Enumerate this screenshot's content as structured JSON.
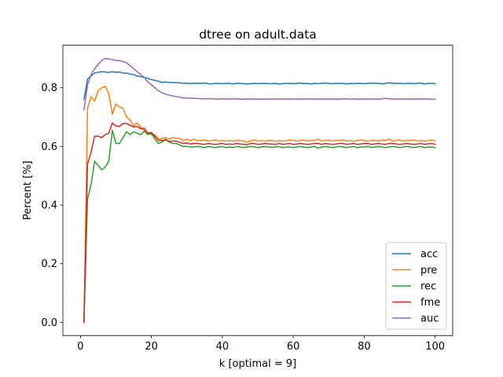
{
  "chart_data": {
    "type": "line",
    "title": "dtree on adult.data",
    "xlabel": "k [optimal = 9]",
    "ylabel": "Percent [%]",
    "xlim": [
      -4.95,
      104.95
    ],
    "ylim": [
      -0.045,
      0.945
    ],
    "xticks": [
      0,
      20,
      40,
      60,
      80,
      100
    ],
    "yticks": [
      0.0,
      0.2,
      0.4,
      0.6,
      0.8
    ],
    "ytick_labels": [
      "0.0",
      "0.2",
      "0.4",
      "0.6",
      "0.8"
    ],
    "grid": false,
    "legend_position": "lower-right",
    "x": [
      1,
      2,
      3,
      4,
      5,
      6,
      7,
      8,
      9,
      10,
      11,
      12,
      13,
      14,
      15,
      16,
      17,
      18,
      19,
      20,
      21,
      22,
      23,
      24,
      25,
      26,
      27,
      28,
      29,
      30,
      31,
      32,
      33,
      34,
      35,
      36,
      37,
      38,
      39,
      40,
      41,
      42,
      43,
      44,
      45,
      46,
      47,
      48,
      49,
      50,
      51,
      52,
      53,
      54,
      55,
      56,
      57,
      58,
      59,
      60,
      61,
      62,
      63,
      64,
      65,
      66,
      67,
      68,
      69,
      70,
      71,
      72,
      73,
      74,
      75,
      76,
      77,
      78,
      79,
      80,
      81,
      82,
      83,
      84,
      85,
      86,
      87,
      88,
      89,
      90,
      91,
      92,
      93,
      94,
      95,
      96,
      97,
      98,
      99,
      100
    ],
    "series": [
      {
        "name": "acc",
        "color": "#1f77b4",
        "values": [
          0.76,
          0.83,
          0.84,
          0.85,
          0.853,
          0.855,
          0.854,
          0.852,
          0.855,
          0.853,
          0.854,
          0.85,
          0.85,
          0.847,
          0.845,
          0.84,
          0.838,
          0.835,
          0.832,
          0.828,
          0.825,
          0.822,
          0.818,
          0.82,
          0.818,
          0.818,
          0.817,
          0.817,
          0.815,
          0.816,
          0.814,
          0.816,
          0.815,
          0.815,
          0.816,
          0.814,
          0.813,
          0.815,
          0.815,
          0.814,
          0.815,
          0.815,
          0.813,
          0.815,
          0.815,
          0.814,
          0.813,
          0.814,
          0.815,
          0.814,
          0.815,
          0.815,
          0.814,
          0.814,
          0.815,
          0.813,
          0.814,
          0.815,
          0.815,
          0.814,
          0.815,
          0.816,
          0.814,
          0.815,
          0.813,
          0.815,
          0.814,
          0.815,
          0.816,
          0.815,
          0.814,
          0.815,
          0.815,
          0.815,
          0.813,
          0.815,
          0.814,
          0.815,
          0.815,
          0.814,
          0.815,
          0.816,
          0.815,
          0.815,
          0.813,
          0.815,
          0.817,
          0.815,
          0.815,
          0.815,
          0.814,
          0.815,
          0.815,
          0.814,
          0.815,
          0.816,
          0.813,
          0.815,
          0.815,
          0.814
        ]
      },
      {
        "name": "pre",
        "color": "#ff7f0e",
        "values": [
          0.0,
          0.73,
          0.77,
          0.755,
          0.79,
          0.8,
          0.805,
          0.78,
          0.71,
          0.745,
          0.735,
          0.73,
          0.7,
          0.69,
          0.67,
          0.68,
          0.665,
          0.655,
          0.645,
          0.64,
          0.64,
          0.625,
          0.628,
          0.63,
          0.625,
          0.63,
          0.628,
          0.627,
          0.62,
          0.625,
          0.62,
          0.625,
          0.62,
          0.62,
          0.622,
          0.618,
          0.62,
          0.622,
          0.618,
          0.62,
          0.618,
          0.62,
          0.618,
          0.62,
          0.62,
          0.618,
          0.615,
          0.62,
          0.622,
          0.618,
          0.62,
          0.618,
          0.62,
          0.62,
          0.617,
          0.62,
          0.618,
          0.62,
          0.622,
          0.62,
          0.618,
          0.62,
          0.622,
          0.618,
          0.62,
          0.62,
          0.625,
          0.618,
          0.62,
          0.622,
          0.618,
          0.62,
          0.62,
          0.622,
          0.618,
          0.62,
          0.618,
          0.62,
          0.622,
          0.62,
          0.618,
          0.62,
          0.62,
          0.618,
          0.622,
          0.62,
          0.625,
          0.618,
          0.62,
          0.622,
          0.618,
          0.62,
          0.62,
          0.622,
          0.618,
          0.62,
          0.618,
          0.62,
          0.622,
          0.618
        ]
      },
      {
        "name": "rec",
        "color": "#2ca02c",
        "values": [
          0.0,
          0.42,
          0.47,
          0.55,
          0.535,
          0.52,
          0.53,
          0.55,
          0.655,
          0.61,
          0.61,
          0.63,
          0.65,
          0.64,
          0.65,
          0.645,
          0.64,
          0.652,
          0.64,
          0.645,
          0.625,
          0.61,
          0.615,
          0.625,
          0.615,
          0.61,
          0.61,
          0.605,
          0.6,
          0.6,
          0.598,
          0.598,
          0.6,
          0.598,
          0.596,
          0.6,
          0.598,
          0.596,
          0.598,
          0.6,
          0.596,
          0.598,
          0.596,
          0.6,
          0.598,
          0.596,
          0.598,
          0.6,
          0.598,
          0.596,
          0.598,
          0.6,
          0.598,
          0.597,
          0.598,
          0.6,
          0.596,
          0.598,
          0.598,
          0.596,
          0.598,
          0.6,
          0.598,
          0.596,
          0.598,
          0.6,
          0.594,
          0.598,
          0.6,
          0.598,
          0.596,
          0.598,
          0.6,
          0.598,
          0.596,
          0.598,
          0.6,
          0.596,
          0.598,
          0.598,
          0.6,
          0.596,
          0.598,
          0.6,
          0.598,
          0.596,
          0.598,
          0.6,
          0.598,
          0.596,
          0.598,
          0.6,
          0.598,
          0.596,
          0.598,
          0.6,
          0.596,
          0.598,
          0.598,
          0.596
        ]
      },
      {
        "name": "fme",
        "color": "#d62728",
        "values": [
          0.0,
          0.54,
          0.58,
          0.635,
          0.635,
          0.63,
          0.64,
          0.645,
          0.68,
          0.67,
          0.668,
          0.678,
          0.678,
          0.672,
          0.666,
          0.668,
          0.66,
          0.662,
          0.645,
          0.648,
          0.634,
          0.62,
          0.62,
          0.622,
          0.617,
          0.618,
          0.618,
          0.614,
          0.61,
          0.612,
          0.608,
          0.61,
          0.61,
          0.608,
          0.607,
          0.61,
          0.608,
          0.607,
          0.608,
          0.61,
          0.607,
          0.608,
          0.607,
          0.61,
          0.608,
          0.607,
          0.606,
          0.61,
          0.61,
          0.607,
          0.608,
          0.61,
          0.608,
          0.608,
          0.607,
          0.61,
          0.607,
          0.608,
          0.61,
          0.607,
          0.608,
          0.61,
          0.608,
          0.607,
          0.608,
          0.61,
          0.61,
          0.607,
          0.61,
          0.608,
          0.607,
          0.608,
          0.61,
          0.61,
          0.607,
          0.608,
          0.61,
          0.607,
          0.608,
          0.61,
          0.61,
          0.607,
          0.608,
          0.61,
          0.608,
          0.607,
          0.61,
          0.61,
          0.608,
          0.607,
          0.608,
          0.61,
          0.608,
          0.607,
          0.608,
          0.61,
          0.607,
          0.608,
          0.61,
          0.607
        ]
      },
      {
        "name": "auc",
        "color": "#9467bd",
        "values": [
          0.725,
          0.81,
          0.845,
          0.865,
          0.88,
          0.893,
          0.9,
          0.898,
          0.896,
          0.893,
          0.892,
          0.89,
          0.885,
          0.875,
          0.865,
          0.855,
          0.845,
          0.835,
          0.82,
          0.81,
          0.8,
          0.79,
          0.783,
          0.778,
          0.775,
          0.772,
          0.77,
          0.768,
          0.765,
          0.765,
          0.764,
          0.764,
          0.763,
          0.763,
          0.762,
          0.763,
          0.762,
          0.762,
          0.761,
          0.762,
          0.762,
          0.761,
          0.762,
          0.762,
          0.761,
          0.761,
          0.762,
          0.761,
          0.762,
          0.761,
          0.761,
          0.762,
          0.761,
          0.761,
          0.762,
          0.761,
          0.762,
          0.761,
          0.762,
          0.761,
          0.761,
          0.762,
          0.761,
          0.762,
          0.761,
          0.762,
          0.761,
          0.761,
          0.762,
          0.761,
          0.762,
          0.761,
          0.761,
          0.762,
          0.762,
          0.761,
          0.762,
          0.761,
          0.761,
          0.762,
          0.761,
          0.762,
          0.761,
          0.761,
          0.762,
          0.764,
          0.762,
          0.761,
          0.762,
          0.761,
          0.762,
          0.761,
          0.762,
          0.761,
          0.762,
          0.761,
          0.762,
          0.761,
          0.761,
          0.761
        ]
      }
    ]
  }
}
